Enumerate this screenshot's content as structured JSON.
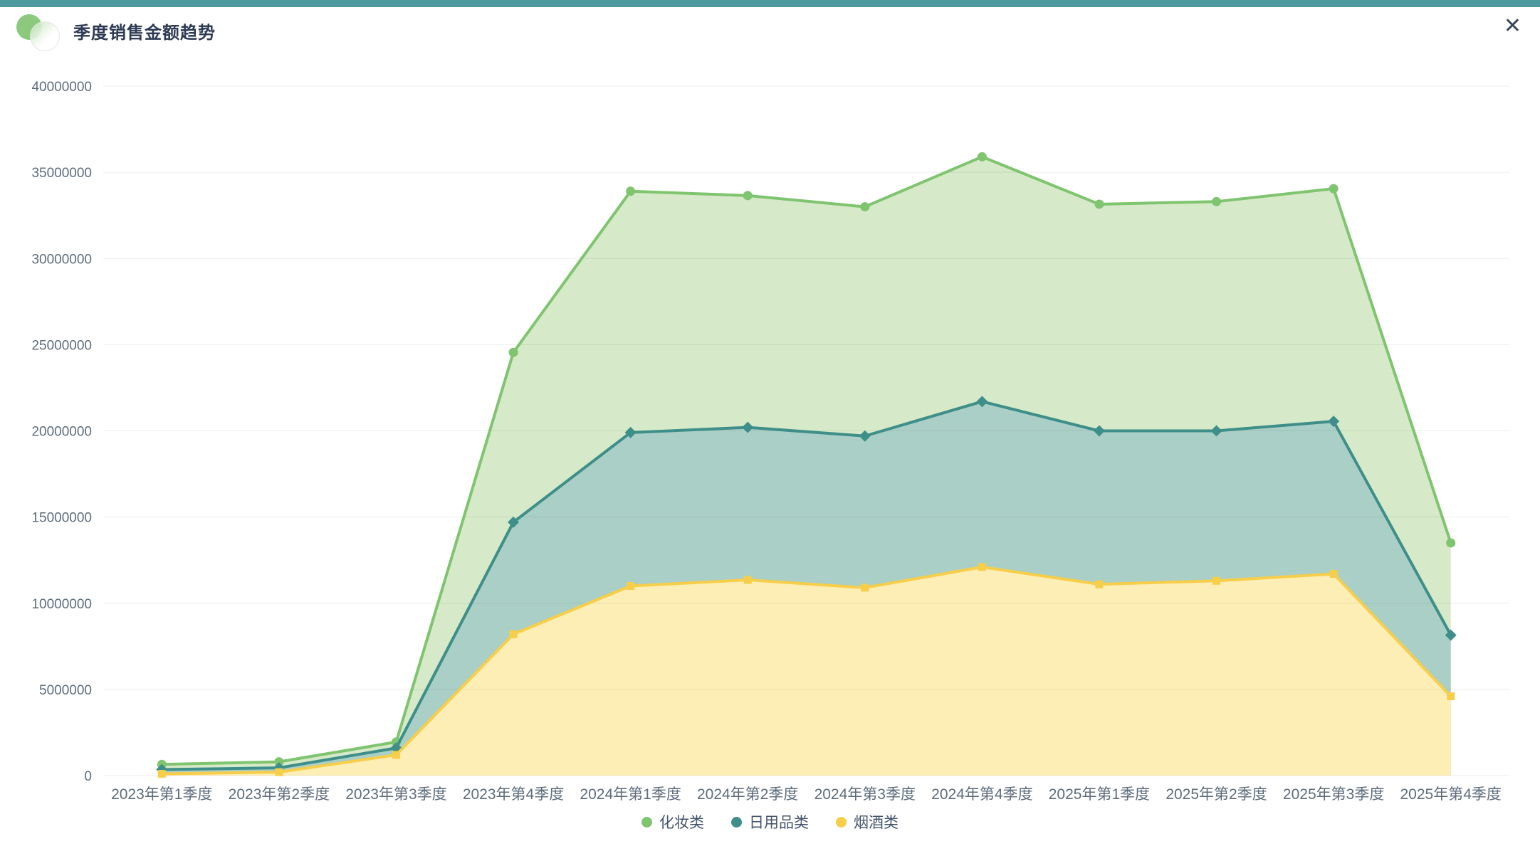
{
  "header": {
    "title": "季度销售金额趋势"
  },
  "icons": {
    "close": "✕",
    "logo": "overlapping-green-circles"
  },
  "colors": {
    "topbar": "#4e9aa0",
    "title_text": "#2d3a53",
    "axis_text": "#5d6c7b",
    "gridline_overlay": "rgba(40,50,60,0.09)",
    "background": "#ffffff",
    "legend_text": "#44546a"
  },
  "chart_data": {
    "type": "area",
    "title": "季度销售金额趋势",
    "categories": [
      "2023年第1季度",
      "2023年第2季度",
      "2023年第3季度",
      "2023年第4季度",
      "2024年第1季度",
      "2024年第2季度",
      "2024年第3季度",
      "2024年第4季度",
      "2025年第1季度",
      "2025年第2季度",
      "2025年第3季度",
      "2025年第4季度"
    ],
    "series": [
      {
        "name": "化妆类",
        "line_color": "#7fc46e",
        "fill_color": "#d6e9c8",
        "symbol": "circle",
        "values": [
          650000,
          800000,
          1950000,
          24550000,
          33900000,
          33650000,
          33000000,
          35900000,
          33150000,
          33300000,
          34050000,
          13500000
        ]
      },
      {
        "name": "日用品类",
        "line_color": "#3e8e89",
        "fill_color": "#aacfc6",
        "symbol": "diamond",
        "values": [
          350000,
          450000,
          1600000,
          14700000,
          19900000,
          20200000,
          19700000,
          21700000,
          20000000,
          20000000,
          20550000,
          8150000
        ]
      },
      {
        "name": "烟酒类",
        "line_color": "#f7ce4a",
        "fill_color": "#fdeeb5",
        "symbol": "square",
        "values": [
          100000,
          200000,
          1200000,
          8200000,
          11000000,
          11350000,
          10900000,
          12100000,
          11100000,
          11300000,
          11700000,
          4600000
        ]
      }
    ],
    "y_axis": {
      "min": 0,
      "max": 40000000,
      "ticks": [
        "0",
        "5000000",
        "10000000",
        "15000000",
        "20000000",
        "25000000",
        "30000000",
        "35000000",
        "40000000"
      ]
    },
    "grid": true,
    "legend_position": "bottom-center"
  }
}
